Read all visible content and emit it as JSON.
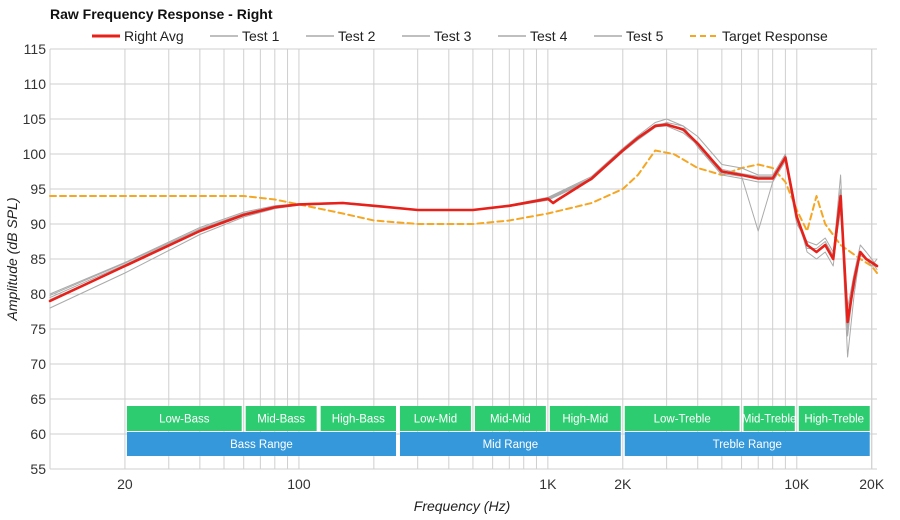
{
  "chart_data": {
    "type": "line",
    "title": "Raw Frequency Response - Right",
    "xlabel": "Frequency (Hz)",
    "ylabel": "Amplitude (dB SPL)",
    "x_scale": "log",
    "xlim": [
      10,
      21000
    ],
    "ylim": [
      55,
      115
    ],
    "x_ticks": [
      {
        "value": 20,
        "label": "20"
      },
      {
        "value": 100,
        "label": "100"
      },
      {
        "value": 1000,
        "label": "1K"
      },
      {
        "value": 2000,
        "label": "2K"
      },
      {
        "value": 10000,
        "label": "10K"
      },
      {
        "value": 20000,
        "label": "20K"
      }
    ],
    "y_ticks": [
      "55",
      "60",
      "65",
      "70",
      "75",
      "80",
      "85",
      "90",
      "95",
      "100",
      "105",
      "110",
      "115"
    ],
    "grid": true,
    "legend_position": "top",
    "legend": [
      "Right Avg",
      "Test 1",
      "Test 2",
      "Test 3",
      "Test 4",
      "Test 5",
      "Target Response"
    ],
    "series": [
      {
        "name": "Target Response",
        "color": "#f5a623",
        "style": "dashed",
        "x": [
          10,
          20,
          40,
          60,
          80,
          100,
          150,
          200,
          300,
          500,
          700,
          1000,
          1500,
          2000,
          2300,
          2700,
          3200,
          4000,
          5000,
          6000,
          7000,
          8000,
          9000,
          10000,
          11000,
          12000,
          13000,
          15000,
          18000,
          20000,
          21000
        ],
        "y": [
          94,
          94,
          94,
          94,
          93.5,
          92.8,
          91.5,
          90.5,
          90,
          90,
          90.5,
          91.5,
          93,
          95,
          97,
          100.5,
          100,
          98,
          97,
          98,
          98.5,
          98,
          96,
          92,
          89,
          94,
          90,
          87,
          85,
          84,
          83
        ]
      },
      {
        "name": "Right Avg",
        "color": "#e8201a",
        "style": "solid",
        "x": [
          10,
          20,
          40,
          60,
          80,
          100,
          150,
          200,
          300,
          500,
          700,
          1000,
          1050,
          1100,
          1500,
          2000,
          2300,
          2700,
          3000,
          3500,
          4000,
          5000,
          6000,
          7000,
          8000,
          9000,
          10000,
          11000,
          12000,
          13000,
          14000,
          15000,
          16000,
          17000,
          18000,
          19000,
          20000,
          21000
        ],
        "y": [
          79,
          84,
          89,
          91.3,
          92.4,
          92.8,
          93,
          92.6,
          92,
          92,
          92.6,
          93.6,
          93,
          93.5,
          96.5,
          100.5,
          102.3,
          104,
          104.2,
          103.5,
          101.5,
          97.5,
          97,
          96.5,
          96.5,
          99.5,
          91,
          87,
          86,
          87,
          85,
          94,
          76,
          82,
          86,
          85,
          84.5,
          84
        ]
      },
      {
        "name": "Test 1",
        "color": "#aaaaaa",
        "style": "solid",
        "x": [
          10,
          20,
          40,
          60,
          80,
          100,
          150,
          200,
          300,
          500,
          700,
          1000,
          1500,
          2000,
          2300,
          2700,
          3000,
          3500,
          4000,
          5000,
          6000,
          7000,
          8000,
          9000,
          10000,
          11000,
          12000,
          13000,
          14000,
          15000,
          16000,
          17000,
          18000,
          19000,
          20000,
          21000
        ],
        "y": [
          78,
          83,
          88.5,
          91,
          92.2,
          92.7,
          93,
          92.6,
          92,
          92,
          92.5,
          93.4,
          96.3,
          100.3,
          102,
          103.8,
          104.5,
          104,
          102.5,
          98.5,
          98,
          97,
          97,
          100,
          91.5,
          86,
          85,
          86,
          84,
          93,
          71,
          80,
          86,
          85,
          84,
          85
        ]
      },
      {
        "name": "Test 2",
        "color": "#aaaaaa",
        "style": "solid",
        "x": [
          10,
          20,
          40,
          60,
          80,
          100,
          150,
          200,
          300,
          500,
          700,
          1000,
          1500,
          2000,
          2300,
          2700,
          3000,
          3500,
          4000,
          5000,
          6000,
          7000,
          8000,
          9000,
          10000,
          11000,
          12000,
          13000,
          14000,
          15000,
          16000,
          17000,
          18000,
          19000,
          20000,
          21000
        ],
        "y": [
          80,
          84.5,
          89.5,
          91.7,
          92.6,
          92.9,
          93.1,
          92.7,
          92,
          92,
          92.7,
          93.8,
          96.8,
          100.8,
          102.6,
          104.5,
          105,
          104,
          101,
          97,
          96.5,
          96,
          96,
          99,
          90,
          87.5,
          87,
          88,
          86,
          95,
          78,
          83,
          87,
          86,
          85,
          84
        ]
      },
      {
        "name": "Test 3",
        "color": "#aaaaaa",
        "style": "solid",
        "x": [
          10,
          20,
          40,
          60,
          80,
          100,
          150,
          200,
          300,
          500,
          700,
          1000,
          1500,
          2000,
          2300,
          2700,
          3000,
          3500,
          4000,
          5000,
          6000,
          7000,
          8000,
          9000,
          10000,
          11000,
          12000,
          13000,
          14000,
          15000,
          16000,
          17000,
          18000,
          19000,
          20000,
          21000
        ],
        "y": [
          79.5,
          84.2,
          89.2,
          91.5,
          92.5,
          92.8,
          93,
          92.6,
          92,
          92,
          92.6,
          93.7,
          96.6,
          100.6,
          102.4,
          104.2,
          104.4,
          103.3,
          101.2,
          97.2,
          96.8,
          89,
          96,
          99.7,
          90.5,
          86.5,
          86.5,
          87.5,
          85.5,
          97,
          74,
          82,
          85.5,
          85,
          84.5,
          83.5
        ]
      },
      {
        "name": "Test 4",
        "color": "#aaaaaa",
        "style": "solid",
        "x": [
          10,
          20,
          40,
          60,
          80,
          100,
          150,
          200,
          300,
          500,
          700,
          1000,
          1500,
          2000,
          2300,
          2700,
          3000,
          3500,
          4000,
          5000,
          6000,
          7000,
          8000,
          9000,
          10000,
          11000,
          12000,
          13000,
          14000,
          15000,
          16000,
          17000,
          18000,
          19000,
          20000,
          21000
        ],
        "y": [
          79.2,
          84,
          89,
          91.3,
          92.4,
          92.8,
          93,
          92.6,
          92,
          92,
          92.5,
          93.5,
          96.4,
          100.4,
          102.2,
          103.9,
          104,
          103,
          101.3,
          97.8,
          97.2,
          96.8,
          96.8,
          99.3,
          91,
          87,
          86,
          87,
          85,
          92,
          77,
          81,
          86,
          85,
          84,
          84
        ]
      },
      {
        "name": "Test 5",
        "color": "#aaaaaa",
        "style": "solid",
        "x": [
          10,
          20,
          40,
          60,
          80,
          100,
          150,
          200,
          300,
          500,
          700,
          1000,
          1500,
          2000,
          2300,
          2700,
          3000,
          3500,
          4000,
          5000,
          6000,
          7000,
          8000,
          9000,
          10000,
          11000,
          12000,
          13000,
          14000,
          15000,
          16000,
          17000,
          18000,
          19000,
          20000,
          21000
        ],
        "y": [
          79.8,
          84.4,
          89.3,
          91.5,
          92.5,
          92.9,
          93,
          92.6,
          92,
          92,
          92.6,
          93.6,
          96.5,
          100.5,
          102.3,
          104.1,
          104.3,
          103.6,
          101.6,
          97.6,
          97,
          96.7,
          96.7,
          99.5,
          91,
          87,
          86,
          87,
          85,
          94,
          75,
          82,
          86,
          85,
          84.5,
          84
        ]
      }
    ],
    "bands": [
      {
        "label": "Low-Bass",
        "row": 1,
        "from": 20,
        "to": 60
      },
      {
        "label": "Mid-Bass",
        "row": 1,
        "from": 60,
        "to": 120
      },
      {
        "label": "High-Bass",
        "row": 1,
        "from": 120,
        "to": 250
      },
      {
        "label": "Low-Mid",
        "row": 1,
        "from": 250,
        "to": 500
      },
      {
        "label": "Mid-Mid",
        "row": 1,
        "from": 500,
        "to": 1000
      },
      {
        "label": "High-Mid",
        "row": 1,
        "from": 1000,
        "to": 2000
      },
      {
        "label": "Low-Treble",
        "row": 1,
        "from": 2000,
        "to": 6000
      },
      {
        "label": "Mid-Treble",
        "row": 1,
        "from": 6000,
        "to": 10000
      },
      {
        "label": "High-Treble",
        "row": 1,
        "from": 10000,
        "to": 20000
      },
      {
        "label": "Bass Range",
        "row": 2,
        "from": 20,
        "to": 250
      },
      {
        "label": "Mid Range",
        "row": 2,
        "from": 250,
        "to": 2000
      },
      {
        "label": "Treble Range",
        "row": 2,
        "from": 2000,
        "to": 20000
      }
    ],
    "band_colors": {
      "row1": "#2ecc71",
      "row2": "#3498db"
    }
  }
}
